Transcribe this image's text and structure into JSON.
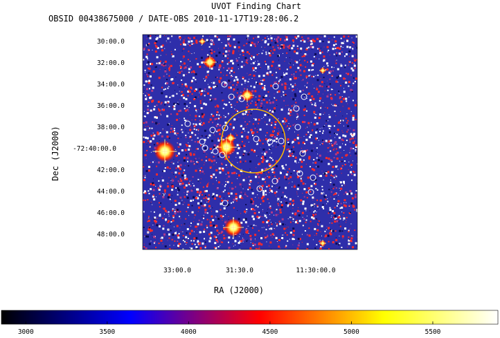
{
  "chart_data": {
    "type": "image",
    "title": "UVOT Finding Chart",
    "subtitle": "OBSID 00438675000 / DATE-OBS 2010-11-17T19:28:06.2",
    "xlabel": "RA (J2000)",
    "ylabel": "Dec (J2000)",
    "x_ticks": [
      "33:00.0",
      "31:30.0",
      "11:30:00.0"
    ],
    "y_ticks": [
      "30:00.0",
      "32:00.0",
      "34:00.0",
      "36:00.0",
      "38:00.0",
      "-72:40:00.0",
      "42:00.0",
      "44:00.0",
      "46:00.0",
      "48:00.0"
    ],
    "colorbar": {
      "ticks": [
        3000,
        3500,
        4000,
        4500,
        5000,
        5500
      ],
      "range": [
        2850,
        5900
      ],
      "colormap": [
        "#000000",
        "#0000ff",
        "#ff0000",
        "#ffff00",
        "#ffffff"
      ]
    },
    "error_circle": {
      "color": "#ffbb00"
    },
    "marker_color": "#ffffff",
    "background_colors": [
      "#2e2eaa",
      "#ffffff",
      "#ff2a2a",
      "#0a0a55"
    ]
  }
}
